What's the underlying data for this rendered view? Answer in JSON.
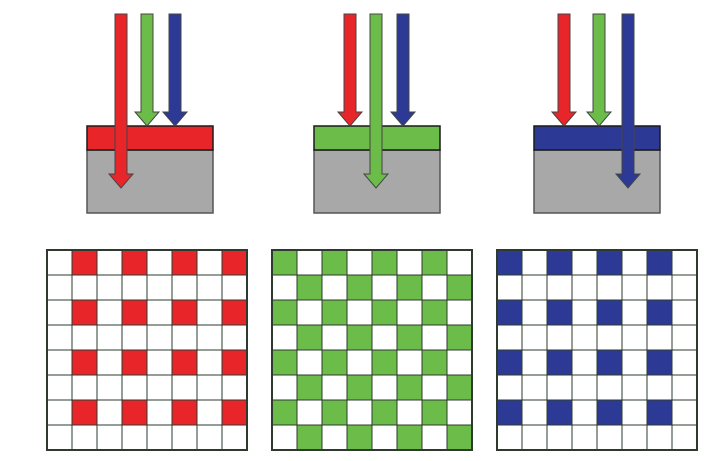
{
  "colors": {
    "red": "#e8262a",
    "green": "#6cbc4a",
    "blue": "#2c3a96",
    "substrate": "#a8a8a8",
    "cell_border": "#2e3a2e",
    "cell_empty": "#ffffff",
    "outline": "#1a1a1a"
  },
  "filters": [
    {
      "name": "red-filter",
      "filter_color": "red",
      "transmitted_color": "red",
      "blocked_colors": [
        "green",
        "blue"
      ]
    },
    {
      "name": "green-filter",
      "filter_color": "green",
      "transmitted_color": "green",
      "blocked_colors": [
        "red",
        "blue"
      ]
    },
    {
      "name": "blue-filter",
      "filter_color": "blue",
      "transmitted_color": "blue",
      "blocked_colors": [
        "red",
        "green"
      ]
    }
  ],
  "mosaics": [
    {
      "name": "red-mosaic",
      "color": "red",
      "rows": [
        [
          0,
          1,
          0,
          1,
          0,
          1,
          0,
          1
        ],
        [
          0,
          0,
          0,
          0,
          0,
          0,
          0,
          0
        ],
        [
          0,
          1,
          0,
          1,
          0,
          1,
          0,
          1
        ],
        [
          0,
          0,
          0,
          0,
          0,
          0,
          0,
          0
        ],
        [
          0,
          1,
          0,
          1,
          0,
          1,
          0,
          1
        ],
        [
          0,
          0,
          0,
          0,
          0,
          0,
          0,
          0
        ],
        [
          0,
          1,
          0,
          1,
          0,
          1,
          0,
          1
        ],
        [
          0,
          0,
          0,
          0,
          0,
          0,
          0,
          0
        ]
      ]
    },
    {
      "name": "green-mosaic",
      "color": "green",
      "rows": [
        [
          1,
          0,
          1,
          0,
          1,
          0,
          1,
          0
        ],
        [
          0,
          1,
          0,
          1,
          0,
          1,
          0,
          1
        ],
        [
          1,
          0,
          1,
          0,
          1,
          0,
          1,
          0
        ],
        [
          0,
          1,
          0,
          1,
          0,
          1,
          0,
          1
        ],
        [
          1,
          0,
          1,
          0,
          1,
          0,
          1,
          0
        ],
        [
          0,
          1,
          0,
          1,
          0,
          1,
          0,
          1
        ],
        [
          1,
          0,
          1,
          0,
          1,
          0,
          1,
          0
        ],
        [
          0,
          1,
          0,
          1,
          0,
          1,
          0,
          1
        ]
      ]
    },
    {
      "name": "blue-mosaic",
      "color": "blue",
      "rows": [
        [
          1,
          0,
          1,
          0,
          1,
          0,
          1,
          0
        ],
        [
          0,
          0,
          0,
          0,
          0,
          0,
          0,
          0
        ],
        [
          1,
          0,
          1,
          0,
          1,
          0,
          1,
          0
        ],
        [
          0,
          0,
          0,
          0,
          0,
          0,
          0,
          0
        ],
        [
          1,
          0,
          1,
          0,
          1,
          0,
          1,
          0
        ],
        [
          0,
          0,
          0,
          0,
          0,
          0,
          0,
          0
        ],
        [
          1,
          0,
          1,
          0,
          1,
          0,
          1,
          0
        ],
        [
          0,
          0,
          0,
          0,
          0,
          0,
          0,
          0
        ]
      ]
    }
  ]
}
